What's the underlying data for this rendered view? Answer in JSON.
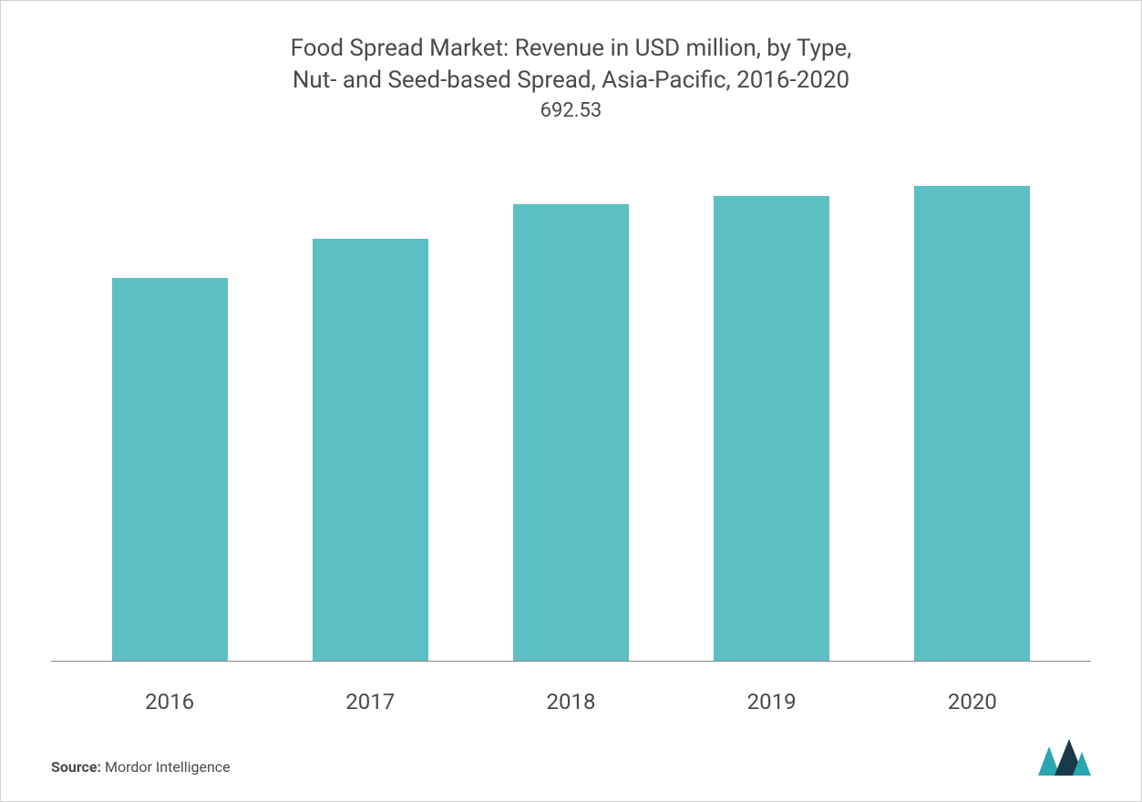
{
  "chart": {
    "type": "bar",
    "title_line1": "Food Spread Market: Revenue in USD million, by Type,",
    "title_line2": "Nut- and Seed-based Spread, Asia-Pacific, 2016-2020",
    "title_fontsize": 26,
    "title_color": "#4a4a4a",
    "categories": [
      "2016",
      "2017",
      "2018",
      "2019",
      "2020"
    ],
    "values": [
      580,
      640,
      692.53,
      705,
      720
    ],
    "value_labels": [
      "",
      "",
      "692.53",
      "",
      ""
    ],
    "ylim": [
      0,
      800
    ],
    "bar_color": "#5cbfc3",
    "bar_width_ratio": 0.64,
    "axis_line_color": "#888888",
    "background_color": "#ffffff",
    "border_color": "#d0d0d0",
    "tick_fontsize": 24,
    "tick_color": "#4a4a4a",
    "data_label_fontsize": 22,
    "data_label_color": "#4a4a4a"
  },
  "footer": {
    "source_label": "Source:",
    "source_value": "Mordor Intelligence",
    "source_fontsize": 16,
    "logo_color_primary": "#2aa6b0",
    "logo_color_secondary": "#1a3a4a"
  }
}
